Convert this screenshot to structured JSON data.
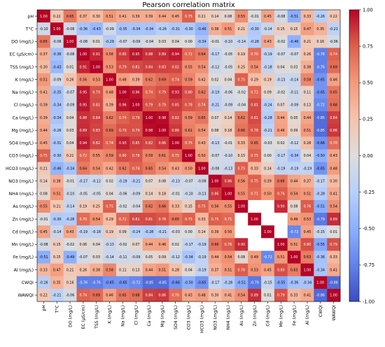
{
  "chart_data": {
    "type": "heatmap",
    "title": "Pearson correlation matrix",
    "labels": [
      "pH",
      "T°C",
      "DO (mg/L)",
      "EC (µS/cm)",
      "TSS (mg/L)",
      "K (mg/L)",
      "Na (mg/L)",
      "Cl (mg/L)",
      "Ca (mg/L)",
      "Mg (mg/L)",
      "SO4 (mg/L)",
      "CO3 (mg/L)",
      "HCO3 (mg/L)",
      "NO3 (mg/L)",
      "NH4 (mg/L)",
      "As (mg/L)",
      "Zn (mg/L)",
      "Cd (mg/L)",
      "Mn (mg/L)",
      "Fe (mg/L)",
      "Al (mg/L)",
      "CWQI",
      "WAWQI"
    ],
    "values": [
      [
        1.0,
        0.22,
        0.65,
        0.37,
        0.3,
        0.51,
        0.41,
        0.39,
        0.39,
        0.44,
        0.45,
        0.75,
        0.21,
        0.14,
        0.08,
        0.55,
        -0.01,
        0.45,
        -0.08,
        -0.51,
        0.33,
        -0.26,
        0.22
      ],
      [
        -0.1,
        1.0,
        -0.08,
        -0.36,
        -0.43,
        -0.09,
        -0.35,
        -0.34,
        -0.34,
        -0.26,
        -0.31,
        -0.3,
        -0.46,
        0.38,
        0.51,
        0.21,
        -0.3,
        -0.14,
        0.15,
        0.15,
        0.47,
        0.35,
        -0.21
      ],
      [
        0.65,
        -0.08,
        1.0,
        -0.08,
        0.01,
        -0.29,
        -0.07,
        -0.09,
        -0.04,
        0.03,
        0.04,
        0.0,
        -0.34,
        -0.01,
        -0.1,
        -0.14,
        -0.28,
        0.43,
        -0.02,
        -0.49,
        0.21,
        0.16,
        -0.06
      ],
      [
        0.37,
        -0.36,
        -0.08,
        1.0,
        0.91,
        0.56,
        0.85,
        0.95,
        0.88,
        0.89,
        0.94,
        0.72,
        0.64,
        -0.17,
        -0.05,
        0.19,
        0.7,
        -0.19,
        -0.07,
        -0.07,
        0.26,
        -0.76,
        0.74
      ],
      [
        0.3,
        -0.43,
        0.01,
        0.91,
        1.0,
        0.53,
        0.79,
        0.81,
        0.84,
        0.83,
        0.82,
        0.55,
        0.54,
        -0.12,
        -0.05,
        0.25,
        0.54,
        -0.18,
        0.04,
        0.03,
        0.38,
        -0.76,
        0.69
      ],
      [
        0.51,
        -0.09,
        0.26,
        0.56,
        0.53,
        1.0,
        0.48,
        0.39,
        0.62,
        0.69,
        0.74,
        0.59,
        0.42,
        0.02,
        0.04,
        0.75,
        0.29,
        0.19,
        -0.13,
        -0.14,
        0.58,
        -0.65,
        0.46
      ],
      [
        0.41,
        -0.35,
        -0.07,
        0.95,
        0.79,
        0.48,
        1.0,
        0.96,
        0.74,
        0.79,
        0.93,
        0.8,
        0.62,
        -0.19,
        -0.06,
        -0.02,
        0.72,
        0.09,
        -0.02,
        -0.11,
        0.11,
        -0.65,
        0.65
      ],
      [
        0.39,
        -0.34,
        -0.09,
        0.95,
        0.81,
        0.39,
        0.96,
        1.0,
        0.79,
        0.79,
        0.85,
        0.78,
        0.74,
        -0.21,
        -0.09,
        -0.04,
        0.81,
        -0.24,
        0.07,
        -0.09,
        0.13,
        -0.72,
        0.68
      ],
      [
        0.39,
        -0.34,
        0.04,
        0.88,
        0.84,
        0.62,
        0.74,
        0.79,
        1.0,
        0.98,
        0.82,
        0.59,
        0.65,
        0.07,
        0.14,
        0.62,
        0.81,
        -0.28,
        0.44,
        0.05,
        0.44,
        -0.85,
        0.84
      ],
      [
        0.44,
        -0.26,
        0.03,
        0.89,
        0.83,
        0.69,
        0.79,
        0.79,
        0.98,
        1.0,
        0.86,
        0.61,
        0.54,
        0.08,
        0.18,
        0.66,
        0.78,
        -0.21,
        0.46,
        0.09,
        0.51,
        -0.85,
        0.86
      ],
      [
        0.45,
        -0.31,
        0.04,
        0.94,
        0.82,
        0.74,
        0.93,
        0.85,
        0.82,
        0.86,
        1.0,
        0.75,
        0.43,
        -0.13,
        -0.01,
        0.33,
        0.65,
        -0.03,
        0.02,
        -0.12,
        0.28,
        -0.66,
        0.7
      ],
      [
        0.75,
        -0.3,
        0.21,
        0.72,
        0.55,
        0.59,
        0.8,
        0.78,
        0.59,
        0.61,
        0.75,
        1.0,
        0.5,
        -0.07,
        -0.1,
        0.15,
        0.75,
        0.0,
        -0.17,
        -0.34,
        0.04,
        -0.5,
        0.43
      ],
      [
        0.21,
        -0.46,
        -0.34,
        0.64,
        0.54,
        0.42,
        0.62,
        0.74,
        0.65,
        0.54,
        0.43,
        0.5,
        1.0,
        -0.08,
        -0.13,
        0.75,
        0.33,
        0.14,
        -0.19,
        -0.19,
        -0.19,
        -0.65,
        0.48
      ],
      [
        0.14,
        0.38,
        -0.01,
        -0.17,
        -0.12,
        0.02,
        -0.19,
        -0.21,
        0.07,
        0.08,
        -0.13,
        -0.07,
        -0.08,
        1.0,
        0.86,
        0.56,
        0.75,
        0.39,
        0.66,
        0.44,
        0.37,
        -0.17,
        0.3
      ],
      [
        0.08,
        0.51,
        -0.1,
        -0.05,
        -0.05,
        0.04,
        -0.06,
        -0.09,
        0.14,
        0.18,
        -0.01,
        -0.1,
        -0.13,
        0.86,
        1.0,
        0.55,
        0.71,
        0.5,
        0.76,
        0.54,
        0.51,
        -0.28,
        0.41
      ],
      [
        0.55,
        0.21,
        -0.14,
        0.19,
        0.25,
        0.75,
        -0.02,
        -0.04,
        0.62,
        0.66,
        0.33,
        0.15,
        0.75,
        0.56,
        0.55,
        1.0,
        null,
        null,
        0.9,
        0.08,
        0.76,
        -0.51,
        0.54
      ],
      [
        -0.01,
        -0.3,
        -0.28,
        0.7,
        0.54,
        0.29,
        0.72,
        0.81,
        0.81,
        0.78,
        0.65,
        0.75,
        0.33,
        0.75,
        0.71,
        null,
        1.0,
        null,
        null,
        0.49,
        0.53,
        -0.79,
        0.89
      ],
      [
        0.45,
        -0.14,
        0.43,
        -0.19,
        -0.18,
        0.19,
        0.09,
        -0.24,
        -0.28,
        -0.21,
        -0.03,
        0.0,
        0.14,
        0.39,
        0.5,
        null,
        null,
        1.0,
        null,
        -0.72,
        0.45,
        -0.15,
        0.01
      ],
      [
        -0.08,
        0.15,
        -0.02,
        0.06,
        0.04,
        -0.13,
        -0.02,
        0.07,
        0.44,
        0.46,
        0.02,
        -0.17,
        -0.19,
        0.66,
        0.76,
        0.9,
        null,
        null,
        1.0,
        0.51,
        0.8,
        -0.55,
        0.79
      ],
      [
        -0.51,
        0.15,
        -0.49,
        -0.07,
        0.03,
        -0.14,
        -0.11,
        -0.09,
        0.05,
        0.09,
        -0.12,
        -0.34,
        -0.19,
        0.44,
        0.54,
        0.08,
        0.49,
        -0.72,
        0.51,
        1.0,
        0.63,
        -0.36,
        0.33
      ],
      [
        0.33,
        0.47,
        0.21,
        0.26,
        0.38,
        0.58,
        0.11,
        0.13,
        0.44,
        0.51,
        0.28,
        0.04,
        -0.19,
        0.37,
        0.51,
        0.76,
        0.53,
        0.45,
        0.8,
        0.63,
        1.0,
        -0.34,
        0.41
      ],
      [
        -0.26,
        0.35,
        0.16,
        -0.76,
        -0.76,
        -0.65,
        -0.65,
        -0.72,
        -0.85,
        -0.85,
        -0.66,
        -0.5,
        -0.65,
        -0.17,
        -0.28,
        -0.51,
        -0.79,
        -0.15,
        -0.55,
        -0.36,
        -0.34,
        1.0,
        -0.86
      ],
      [
        0.22,
        -0.21,
        -0.06,
        0.74,
        0.69,
        0.46,
        0.65,
        0.68,
        0.84,
        0.86,
        0.7,
        0.43,
        0.48,
        0.3,
        0.41,
        0.54,
        0.89,
        0.01,
        0.79,
        0.33,
        0.41,
        -0.86,
        1.0
      ]
    ],
    "colorbar": {
      "ticks": [
        "1.00",
        "0.75",
        "0.50",
        "0.25",
        "0.00",
        "-0.25",
        "-0.50",
        "-0.75",
        "-1.00"
      ],
      "range": [
        -1,
        1
      ],
      "colormap": "coolwarm"
    }
  }
}
